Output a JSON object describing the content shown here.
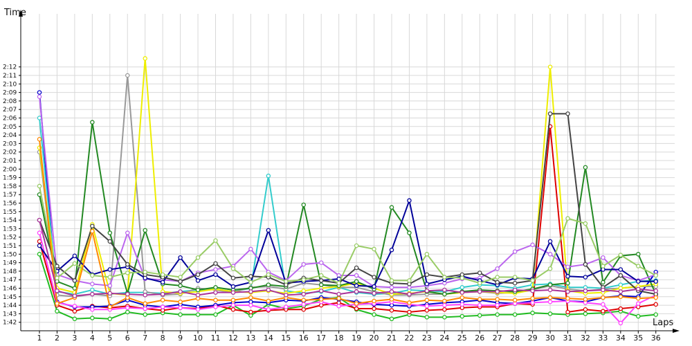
{
  "chart_data": {
    "type": "line",
    "xlabel": "Laps",
    "ylabel": "Time",
    "x": [
      1,
      2,
      3,
      4,
      5,
      6,
      7,
      8,
      9,
      10,
      11,
      12,
      13,
      14,
      15,
      16,
      17,
      18,
      19,
      20,
      21,
      22,
      23,
      24,
      25,
      26,
      27,
      28,
      29,
      30,
      31,
      32,
      33,
      34,
      35,
      36
    ],
    "y_ticks": [
      "1:42",
      "1:43",
      "1:44",
      "1:45",
      "1:46",
      "1:47",
      "1:48",
      "1:49",
      "1:50",
      "1:51",
      "1:52",
      "1:53",
      "1:54",
      "1:55",
      "1:56",
      "1:57",
      "1:58",
      "1:59",
      "2:00",
      "2:01",
      "2:02",
      "2:03",
      "2:04",
      "2:05",
      "2:06",
      "2:07",
      "2:08",
      "2:09",
      "2:10",
      "2:11",
      "2:12"
    ],
    "ylim_seconds": [
      101,
      133
    ],
    "grid": true,
    "legend": "none",
    "series": [
      {
        "color": "#22bb22",
        "values": [
          110,
          103.3,
          102.4,
          102.5,
          102.4,
          103.2,
          102.9,
          103.1,
          102.9,
          102.9,
          102.9,
          104,
          102.8,
          104.1,
          103.6,
          103.9,
          104.7,
          104.9,
          103.5,
          102.9,
          102.4,
          102.9,
          102.6,
          102.6,
          102.7,
          102.8,
          102.9,
          102.9,
          103.1,
          103,
          102.9,
          103,
          103.1,
          103.3,
          102.7,
          102.9
        ]
      },
      {
        "color": "#dd0000",
        "values": [
          111.5,
          104,
          103.3,
          103.9,
          103.7,
          103.9,
          103.6,
          103.4,
          103.7,
          103.6,
          104,
          103.5,
          103.2,
          103.4,
          103.5,
          103.5,
          104,
          104.3,
          103.6,
          103.6,
          103.4,
          103.2,
          103.4,
          103.5,
          103.7,
          103.8,
          103.8,
          104.2,
          104.1,
          125,
          103.2,
          103.5,
          103.3,
          103.6,
          103.8,
          104.1
        ]
      },
      {
        "color": "#0000cc",
        "values": [
          129,
          104.4,
          103.8,
          103.8,
          103.9,
          104.6,
          104,
          103.8,
          104.1,
          103.8,
          104,
          104.3,
          104.4,
          104.3,
          104.6,
          104.5,
          104.9,
          104.7,
          104.4,
          104.1,
          104,
          103.9,
          104.1,
          104.3,
          104.4,
          104.6,
          104.3,
          104.2,
          104.5,
          104.9,
          104.5,
          104.4,
          104.9,
          105.1,
          105,
          107.9
        ]
      },
      {
        "color": "#ff44ff",
        "values": [
          112.5,
          104.3,
          103.9,
          103.5,
          103.5,
          103.7,
          103.6,
          103.8,
          103.7,
          103.5,
          103.8,
          104,
          104,
          103.5,
          103.8,
          104.1,
          104.4,
          103.9,
          104.1,
          104.2,
          104.4,
          104.1,
          103.9,
          104,
          104.1,
          104,
          104,
          104.2,
          104.3,
          104.4,
          104.5,
          104.3,
          104.1,
          101.9,
          104.2,
          105.2
        ]
      },
      {
        "color": "#33cccc",
        "values": [
          126,
          105.6,
          105.3,
          105.8,
          105.3,
          105.5,
          105.5,
          105.4,
          105.6,
          105.8,
          105.9,
          105.6,
          106,
          119.2,
          105.7,
          105.4,
          105.6,
          106.1,
          105.5,
          105.3,
          105.4,
          105.8,
          105.7,
          105.6,
          106.1,
          106.4,
          106.3,
          106,
          106.4,
          106.5,
          106.1,
          106.1,
          106,
          106.4,
          106.8,
          106.9
        ]
      },
      {
        "color": "#999999",
        "values": [
          122,
          105.2,
          105,
          105.3,
          105.1,
          131,
          105.6,
          105.2,
          105.3,
          106,
          105.8,
          105.5,
          106.1,
          106.2,
          105.9,
          106.6,
          106.4,
          106.1,
          106.1,
          105.6,
          105.2,
          105.2,
          105.3,
          105.3,
          105.5,
          105.6,
          105.4,
          105.5,
          105.8,
          106.3,
          105.9,
          105.7,
          105.9,
          106,
          106.2,
          106.2
        ]
      },
      {
        "color": "#eeee00",
        "values": [
          122.5,
          106,
          105.5,
          113.5,
          105.4,
          105.2,
          133,
          105.6,
          105.4,
          105.6,
          105.9,
          105.6,
          105.5,
          105.7,
          105.4,
          105.7,
          106,
          106.2,
          106.6,
          106,
          105.3,
          105.4,
          105.6,
          105.3,
          105.5,
          105.6,
          105.5,
          105.4,
          105.8,
          132,
          105.7,
          105.4,
          105.5,
          106,
          106.2,
          106.5
        ]
      },
      {
        "color": "#228822",
        "values": [
          117,
          106.8,
          106,
          125.5,
          112.5,
          105.4,
          112.8,
          106.5,
          106.3,
          105.8,
          106.1,
          105.8,
          106,
          106.4,
          106.2,
          115.8,
          106.4,
          106.3,
          106.8,
          105.9,
          115.5,
          112.5,
          105.6,
          105.3,
          105.6,
          105.8,
          105.7,
          105.6,
          105.9,
          106.4,
          106.6,
          120.2,
          106.7,
          109.8,
          110,
          105.3
        ]
      },
      {
        "color": "#bb66ee",
        "values": [
          128.5,
          107.6,
          106.9,
          106.5,
          106.3,
          112.5,
          107.1,
          107,
          106.8,
          107.8,
          108.2,
          108.6,
          110.6,
          107.9,
          106.9,
          108.8,
          109,
          107.5,
          107.5,
          106.2,
          106.1,
          106.1,
          106.3,
          106.6,
          107.1,
          107.2,
          108.3,
          110.3,
          111.1,
          110,
          108.5,
          108.8,
          109.6,
          107.5,
          106.9,
          107.6
        ]
      },
      {
        "color": "#000099",
        "values": [
          111,
          108,
          109.8,
          107.6,
          108.2,
          108.5,
          107.2,
          106.7,
          109.6,
          106.9,
          107.6,
          106.2,
          106.7,
          112.8,
          106.6,
          106.8,
          106.9,
          107.1,
          106.3,
          106.2,
          110.5,
          116.3,
          106.5,
          107,
          107.4,
          106.9,
          106.4,
          107.2,
          107.1,
          111.5,
          107.4,
          107.3,
          108.2,
          108.2,
          106.8,
          106.8
        ]
      },
      {
        "color": "#444444",
        "values": [
          114,
          108.6,
          106.9,
          113.3,
          111.5,
          108.8,
          107.6,
          107.3,
          106.8,
          107.6,
          108.9,
          107.2,
          107.4,
          107.3,
          106.4,
          107.2,
          106.9,
          106.6,
          108.4,
          107.3,
          106.6,
          106.5,
          107.6,
          107.3,
          107.6,
          107.8,
          106.7,
          106.6,
          106.9,
          126.5,
          126.5,
          108.8,
          106.1,
          107.5,
          105.7,
          105.3
        ]
      },
      {
        "color": "#99cc66",
        "values": [
          118,
          107.2,
          108.9,
          107.5,
          107.3,
          107.8,
          107.9,
          107.6,
          107.3,
          109.6,
          111.6,
          108.3,
          106.7,
          107.6,
          106.8,
          107,
          107.5,
          106.6,
          111,
          110.6,
          106.9,
          106.9,
          110,
          107.3,
          107.2,
          106.6,
          107.3,
          107.3,
          106.9,
          108.3,
          114.2,
          113.6,
          108.6,
          109.9,
          108.6,
          107.5
        ]
      },
      {
        "color": "#ff8800",
        "values": [
          123.5,
          104.2,
          104.9,
          112.7,
          103.8,
          104.9,
          104.2,
          104.6,
          104.4,
          104.8,
          104.6,
          104.6,
          104.9,
          104.5,
          104.9,
          104.6,
          104.7,
          104.8,
          104.2,
          104.5,
          104.7,
          104.3,
          104.6,
          104.5,
          104.9,
          104.7,
          104.7,
          104.6,
          104.8,
          104.9,
          104.8,
          104.7,
          104.9,
          105,
          104.8,
          104.9
        ]
      },
      {
        "color": "#aa3399",
        "values": [
          114,
          105.7,
          105.1,
          105.3,
          105.4,
          105.3,
          105.2,
          105.3,
          105.6,
          105.2,
          105.5,
          105.5,
          105.6,
          105.8,
          105.2,
          105.3,
          105.7,
          105.3,
          105.6,
          105.4,
          105.6,
          105.3,
          105.7,
          105.8,
          105.5,
          105.6,
          105.6,
          105.8,
          105.7,
          105.8,
          105.6,
          105.7,
          105.8,
          105.6,
          105.9,
          105.7
        ]
      }
    ]
  }
}
